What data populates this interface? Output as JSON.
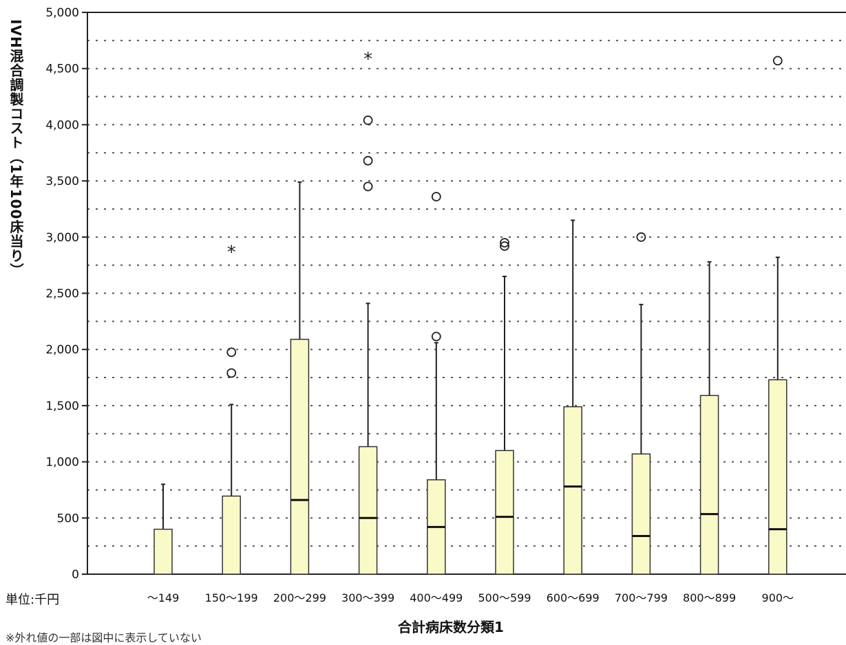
{
  "chart_data": {
    "type": "boxplot",
    "xlabel": "合計病床数分類1",
    "ylabel": "IVH混合調製コスト（1年100床当り）",
    "unit_note": "単位:千円",
    "footnote": "※外れ値の一部は図中に表示していない",
    "ylim": [
      0,
      5000
    ],
    "yticks": [
      "0",
      "500",
      "1,000",
      "1,500",
      "2,000",
      "2,500",
      "3,000",
      "3,500",
      "4,000",
      "4,500",
      "5,000"
    ],
    "grid": "dotted horizontal lines every 250",
    "categories": [
      "～149",
      "150～199",
      "200～299",
      "300～399",
      "400～499",
      "500～599",
      "600～699",
      "700～799",
      "800～899",
      "900～"
    ],
    "boxes": [
      {
        "category": "～149",
        "q1": 0,
        "median": 0,
        "q3": 400,
        "whisker_low": 0,
        "whisker_high": 800,
        "outliers": [],
        "extremes": []
      },
      {
        "category": "150～199",
        "q1": 0,
        "median": 0,
        "q3": 695,
        "whisker_low": 0,
        "whisker_high": 1510,
        "outliers": [
          1790,
          1975
        ],
        "extremes": [
          2880
        ]
      },
      {
        "category": "200～299",
        "q1": 0,
        "median": 660,
        "q3": 2090,
        "whisker_low": 0,
        "whisker_high": 3490,
        "outliers": [],
        "extremes": []
      },
      {
        "category": "300～399",
        "q1": 0,
        "median": 500,
        "q3": 1135,
        "whisker_low": 0,
        "whisker_high": 2410,
        "outliers": [
          3450,
          3680,
          4040
        ],
        "extremes": [
          4600
        ]
      },
      {
        "category": "400～499",
        "q1": 0,
        "median": 420,
        "q3": 840,
        "whisker_low": 0,
        "whisker_high": 2060,
        "outliers": [
          2115,
          3360
        ],
        "extremes": []
      },
      {
        "category": "500～599",
        "q1": 0,
        "median": 510,
        "q3": 1100,
        "whisker_low": 0,
        "whisker_high": 2650,
        "outliers": [
          2920,
          2950
        ],
        "extremes": []
      },
      {
        "category": "600～699",
        "q1": 0,
        "median": 780,
        "q3": 1490,
        "whisker_low": 0,
        "whisker_high": 3150,
        "outliers": [],
        "extremes": []
      },
      {
        "category": "700～799",
        "q1": 0,
        "median": 340,
        "q3": 1070,
        "whisker_low": 0,
        "whisker_high": 2400,
        "outliers": [
          3000
        ],
        "extremes": []
      },
      {
        "category": "800～899",
        "q1": 0,
        "median": 535,
        "q3": 1590,
        "whisker_low": 0,
        "whisker_high": 2780,
        "outliers": [],
        "extremes": []
      },
      {
        "category": "900～",
        "q1": 0,
        "median": 400,
        "q3": 1730,
        "whisker_low": 0,
        "whisker_high": 2820,
        "outliers": [
          4570
        ],
        "extremes": []
      }
    ],
    "colors": {
      "box_fill": "#fafac8",
      "box_stroke": "#333333",
      "grid": "#555555",
      "text": "#111111"
    }
  }
}
